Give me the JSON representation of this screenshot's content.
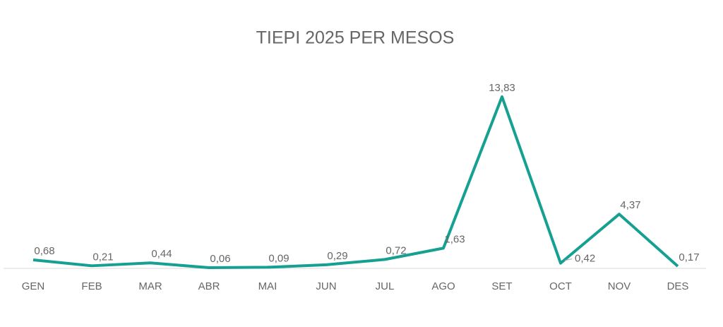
{
  "chart_data": {
    "type": "line",
    "title": "TIEPI 2025 PER MESOS",
    "categories": [
      "GEN",
      "FEB",
      "MAR",
      "ABR",
      "MAI",
      "JUN",
      "JUL",
      "AGO",
      "SET",
      "OCT",
      "NOV",
      "DES"
    ],
    "series": [
      {
        "color": "#16a092",
        "values": [
          0.68,
          0.21,
          0.44,
          0.06,
          0.09,
          0.29,
          0.72,
          1.63,
          13.83,
          0.42,
          4.37,
          0.17
        ],
        "value_labels": [
          "0,68",
          "0,21",
          "0,44",
          "0,06",
          "0,09",
          "0,29",
          "0,72",
          "1,63",
          "13,83",
          "0,42",
          "4,37",
          "0,17"
        ]
      }
    ]
  }
}
